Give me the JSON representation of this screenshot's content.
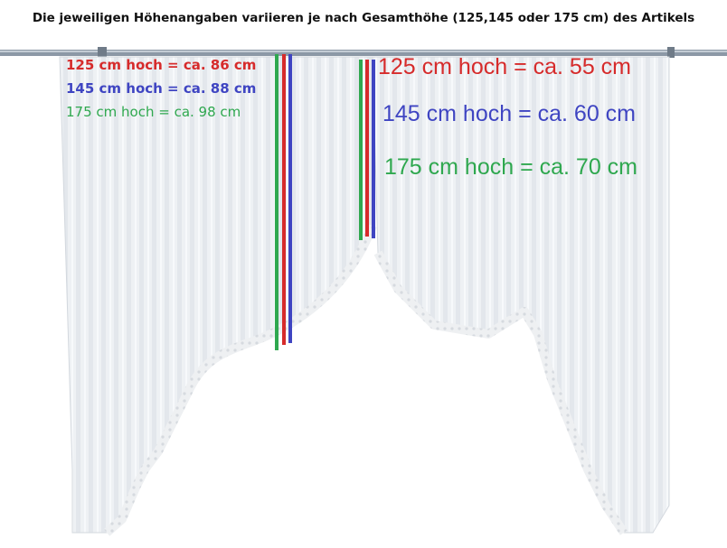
{
  "header": {
    "text": "Die jeweiligen Höhenangaben variieren je nach Gesamthöhe (125,145 oder 175 cm) des Artikels"
  },
  "colors": {
    "red": "#d62b2b",
    "blue": "#3f45c2",
    "green": "#2fa84f",
    "curtain": "#eef1f4",
    "rod": "#8c98a6"
  },
  "left_labels": [
    {
      "text": "125 cm hoch = ca. 86 cm",
      "color": "#d62b2b"
    },
    {
      "text": "145 cm hoch = ca. 88 cm",
      "color": "#3f45c2"
    },
    {
      "text": "175 cm hoch = ca. 98 cm",
      "color": "#2fa84f"
    }
  ],
  "center_labels": [
    {
      "text": "125 cm hoch = ca. 55 cm",
      "color": "#d62b2b"
    },
    {
      "text": "145 cm hoch = ca. 60 cm",
      "color": "#3f45c2"
    },
    {
      "text": "175 cm hoch = ca. 70 cm",
      "color": "#2fa84f"
    }
  ]
}
